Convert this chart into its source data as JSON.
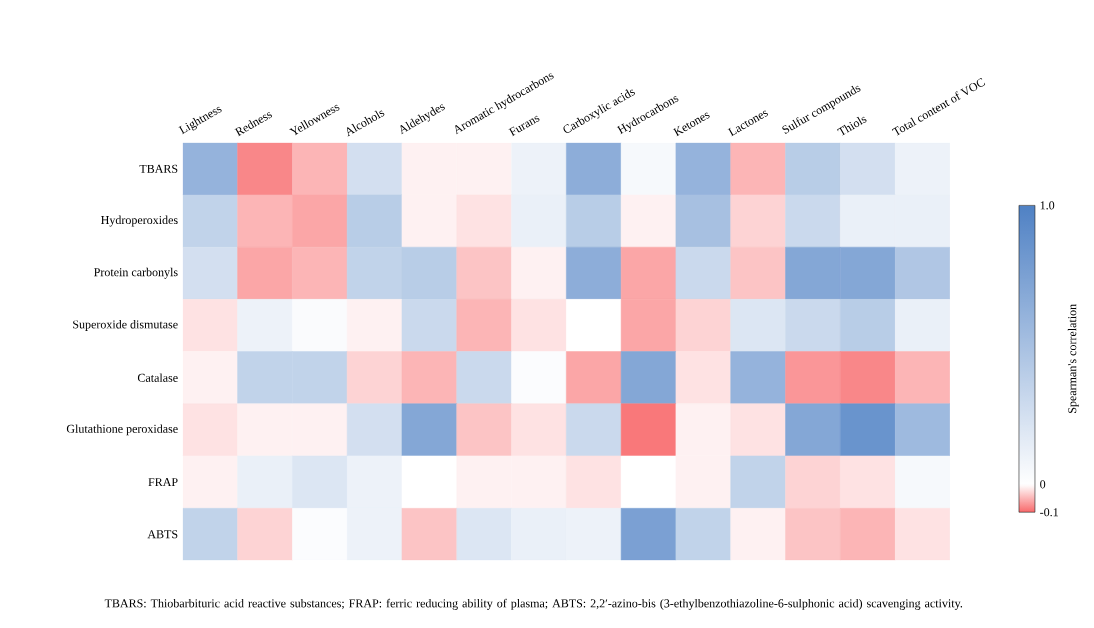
{
  "chart_data": {
    "type": "heatmap",
    "categories": [
      "Lightness",
      "Redness",
      "Yellowness",
      "Alcohols",
      "Aldehydes",
      "Aromatic hydrocarbons",
      "Furans",
      "Carboxylic acids",
      "Hydrocarbons",
      "Ketones",
      "Lactones",
      "Sulfur compounds",
      "Thiols",
      "Total content of VOC"
    ],
    "y_categories": [
      "TBARS",
      "Hydroperoxides",
      "Protein carbonyls",
      "Superoxide dismutase",
      "Catalase",
      "Glutathione peroxidase",
      "FRAP",
      "ABTS"
    ],
    "cells": [
      [
        0.6,
        -0.08,
        -0.05,
        0.25,
        -0.01,
        -0.01,
        0.1,
        0.65,
        0.05,
        0.6,
        -0.05,
        0.4,
        0.25,
        0.1
      ],
      [
        0.35,
        -0.05,
        -0.06,
        0.4,
        -0.01,
        -0.02,
        0.12,
        0.4,
        -0.01,
        0.5,
        -0.03,
        0.3,
        0.12,
        0.12
      ],
      [
        0.25,
        -0.06,
        -0.05,
        0.35,
        0.4,
        -0.04,
        -0.01,
        0.65,
        -0.06,
        0.3,
        -0.04,
        0.7,
        0.7,
        0.45
      ],
      [
        -0.02,
        0.1,
        0.03,
        -0.01,
        0.3,
        -0.05,
        -0.02,
        0,
        -0.06,
        -0.03,
        0.2,
        0.3,
        0.4,
        0.12
      ],
      [
        -0.01,
        0.35,
        0.35,
        -0.03,
        -0.05,
        0.3,
        0.02,
        -0.06,
        0.7,
        -0.02,
        0.6,
        -0.07,
        -0.08,
        -0.05
      ],
      [
        -0.02,
        -0.01,
        -0.01,
        0.25,
        0.7,
        -0.04,
        -0.02,
        0.3,
        -0.09,
        -0.01,
        -0.02,
        0.7,
        0.85,
        0.55
      ],
      [
        -0.01,
        0.12,
        0.2,
        0.1,
        0,
        -0.01,
        -0.01,
        -0.02,
        0,
        -0.01,
        0.35,
        -0.03,
        -0.02,
        0.05
      ],
      [
        0.35,
        -0.03,
        0.02,
        0.1,
        -0.04,
        0.2,
        0.12,
        0.1,
        0.75,
        0.35,
        -0.01,
        -0.04,
        -0.05,
        -0.02
      ]
    ],
    "clim": [
      -0.1,
      1
    ],
    "cticks": [
      -0.1,
      0,
      {
        "value": 1,
        "label": "1.0"
      }
    ],
    "clabel": "Spearman's correlation",
    "annotations": [
      "TBARS: Thiobarbituric acid reactive substances; FRAP: ferric reducing ability of plasma; ABTS: 2,2′-azino-bis (3-ethylbenzothiazoline-6-sulphonic acid) scavenging activity."
    ]
  }
}
